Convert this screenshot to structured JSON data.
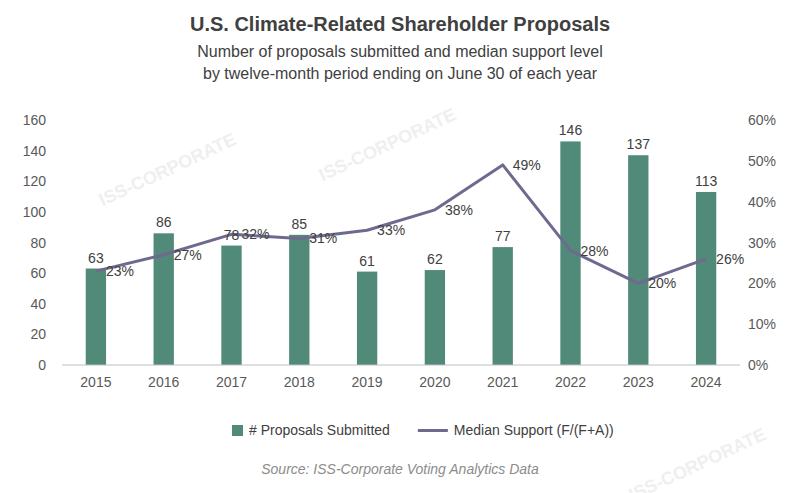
{
  "chart_data": {
    "type": "bar",
    "title": "U.S. Climate-Related Shareholder Proposals",
    "subtitle": [
      "Number of proposals submitted and median support level",
      "by twelve-month period ending on June 30 of each year"
    ],
    "source": "Source: ISS-Corporate Voting Analytics Data",
    "watermark": "ISS-CORPORATE",
    "categories": [
      "2015",
      "2016",
      "2017",
      "2018",
      "2019",
      "2020",
      "2021",
      "2022",
      "2023",
      "2024"
    ],
    "series": [
      {
        "name": "# Proposals Submitted",
        "type": "bar",
        "color": "#518a78",
        "values": [
          63,
          86,
          78,
          85,
          61,
          62,
          77,
          146,
          137,
          113
        ]
      },
      {
        "name": "Median Support (F/(F+A))",
        "type": "line",
        "axis": "y2",
        "color": "#6e6a8f",
        "values": [
          23,
          27,
          32,
          31,
          33,
          38,
          49,
          28,
          20,
          26
        ],
        "value_labels": [
          "23%",
          "27%",
          "32%",
          "31%",
          "33%",
          "38%",
          "49%",
          "28%",
          "20%",
          "26%"
        ]
      }
    ],
    "ylim": [
      0,
      160
    ],
    "yticks": [
      0,
      20,
      40,
      60,
      80,
      100,
      120,
      140,
      160
    ],
    "y2lim": [
      0,
      60
    ],
    "y2ticks": [
      {
        "value": 0,
        "label": "0%"
      },
      {
        "value": 10,
        "label": "10%"
      },
      {
        "value": 20,
        "label": "20%"
      },
      {
        "value": 30,
        "label": "30%"
      },
      {
        "value": 40,
        "label": "40%"
      },
      {
        "value": 50,
        "label": "50%"
      },
      {
        "value": 60,
        "label": "60%"
      }
    ],
    "grid": false,
    "data_labels": true,
    "legend": "bottom"
  }
}
